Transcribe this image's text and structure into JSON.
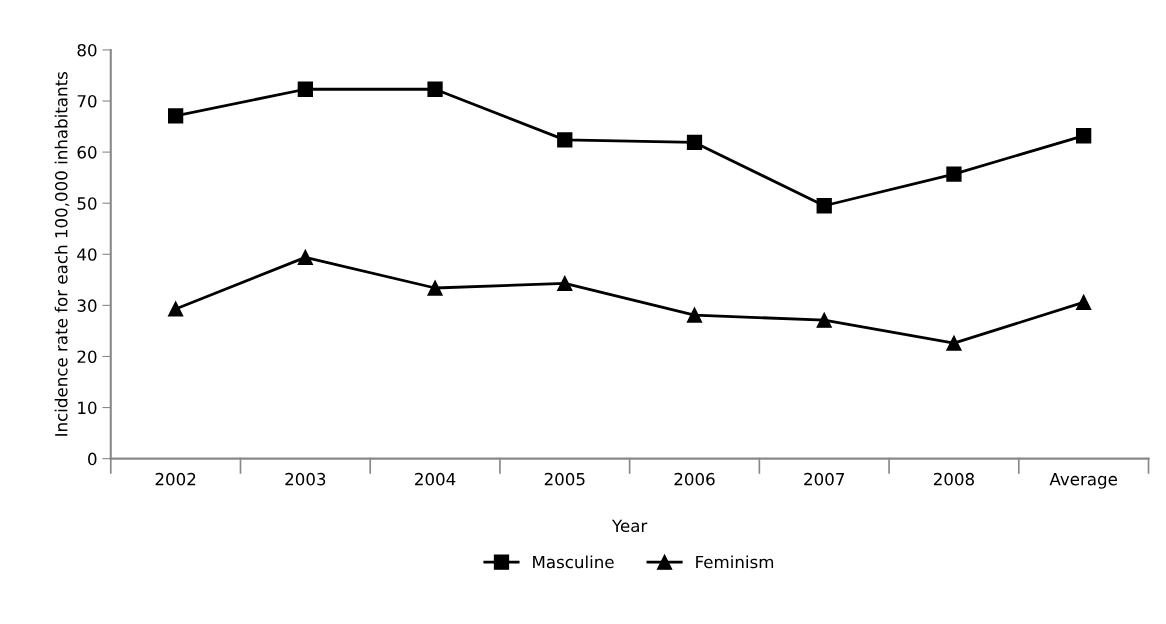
{
  "chart_data": {
    "type": "line",
    "xlabel": "Year",
    "ylabel": "Incidence rate for each 100,000 inhabitants",
    "categories": [
      "2002",
      "2003",
      "2004",
      "2005",
      "2006",
      "2007",
      "2008",
      "Average"
    ],
    "series": [
      {
        "name": "Masculine",
        "color": "#000000",
        "marker": "square",
        "values": [
          67.1,
          72.3,
          72.3,
          62.4,
          61.9,
          49.5,
          55.7,
          63.2
        ]
      },
      {
        "name": "Feminism",
        "color": "#000000",
        "marker": "triangle",
        "values": [
          29.3,
          39.4,
          33.4,
          34.3,
          28.1,
          27.1,
          22.6,
          30.6
        ]
      }
    ],
    "ylim": [
      0,
      80
    ],
    "yticks": [
      0,
      10,
      20,
      30,
      40,
      50,
      60,
      70,
      80
    ],
    "grid": false,
    "legend": "bottom",
    "line_style": "solid"
  }
}
